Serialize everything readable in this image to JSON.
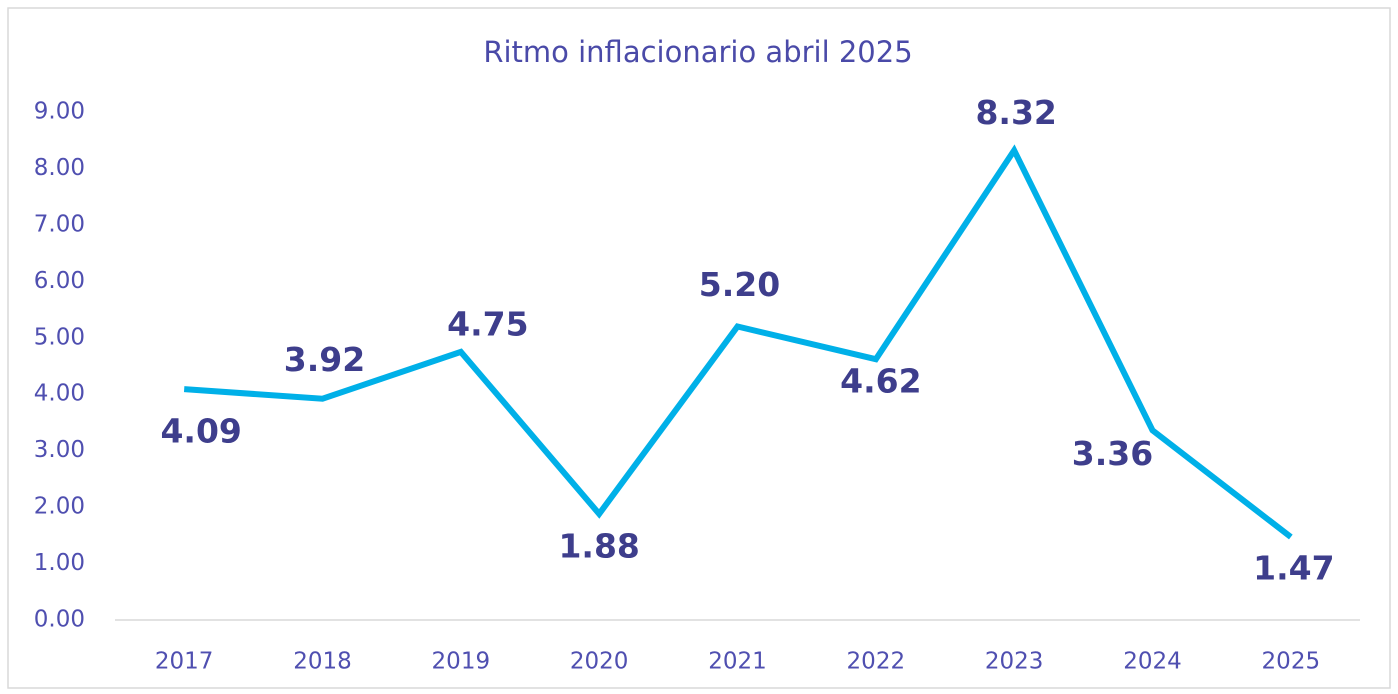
{
  "chart_data": {
    "type": "line",
    "title": "Ritmo inflacionario abril 2025",
    "categories": [
      "2017",
      "2018",
      "2019",
      "2020",
      "2021",
      "2022",
      "2023",
      "2024",
      "2025"
    ],
    "series": [
      {
        "name": "Ritmo inflacionario",
        "color": "#00b0e8",
        "values": [
          4.09,
          3.92,
          4.75,
          1.88,
          5.2,
          4.62,
          8.32,
          3.36,
          1.47
        ],
        "value_labels": [
          "4.09",
          "3.92",
          "4.75",
          "1.88",
          "5.20",
          "4.62",
          "8.32",
          "3.36",
          "1.47"
        ]
      }
    ],
    "ylim": [
      0,
      9
    ],
    "yticks": [
      {
        "value": 0,
        "label": "0.00"
      },
      {
        "value": 1,
        "label": "1.00"
      },
      {
        "value": 2,
        "label": "2.00"
      },
      {
        "value": 3,
        "label": "3.00"
      },
      {
        "value": 4,
        "label": "4.00"
      },
      {
        "value": 5,
        "label": "5.00"
      },
      {
        "value": 6,
        "label": "6.00"
      },
      {
        "value": 7,
        "label": "7.00"
      },
      {
        "value": 8,
        "label": "8.00"
      },
      {
        "value": 9,
        "label": "9.00"
      }
    ],
    "grid": false
  }
}
